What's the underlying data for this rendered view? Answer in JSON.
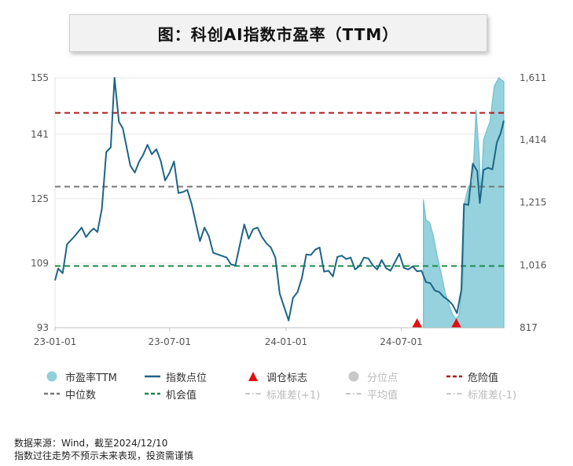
{
  "title": "图：科创AI指数市盈率（TTM）",
  "colors": {
    "pe_fill": "#8fd0db",
    "pe_stroke": "#6cc0ce",
    "index_line": "#1d6585",
    "danger": "#b01a1a",
    "median": "#777777",
    "opportunity": "#1a8a4a",
    "triangle": "#e01010",
    "muted": "#c8c8c8"
  },
  "chart_data": {
    "type": "line",
    "left_axis": {
      "min": 93,
      "max": 155,
      "ticks": [
        93,
        109,
        125,
        141,
        155
      ]
    },
    "right_axis": {
      "min": 817,
      "max": 1611,
      "ticks": [
        "817",
        "1,016",
        "1,215",
        "1,414",
        "1,611"
      ]
    },
    "x_axis": {
      "min": "2023-01-01",
      "max": "2024-12-10",
      "ticks": [
        {
          "label": "23-01-01",
          "date": "2023-01-01"
        },
        {
          "label": "23-07-01",
          "date": "2023-07-01"
        },
        {
          "label": "24-01-01",
          "date": "2024-01-01"
        },
        {
          "label": "24-07-01",
          "date": "2024-07-01"
        }
      ]
    },
    "reference_lines": {
      "danger": 146.3,
      "median": 128.0,
      "opportunity": 108.3
    },
    "pe_series": {
      "name": "市盈率TTM",
      "points": [
        [
          "2024-08-05",
          124.8
        ],
        [
          "2024-08-09",
          119.8
        ],
        [
          "2024-08-15",
          119.0
        ],
        [
          "2024-08-21",
          115.5
        ],
        [
          "2024-08-27",
          110.5
        ],
        [
          "2024-09-02",
          106.5
        ],
        [
          "2024-09-08",
          101.8
        ],
        [
          "2024-09-14",
          98.8
        ],
        [
          "2024-09-20",
          96.3
        ],
        [
          "2024-09-25",
          95.2
        ],
        [
          "2024-09-30",
          96.0
        ],
        [
          "2024-10-06",
          104.0
        ],
        [
          "2024-10-09",
          124.0
        ],
        [
          "2024-10-15",
          128.0
        ],
        [
          "2024-10-22",
          129.0
        ],
        [
          "2024-10-27",
          147.0
        ],
        [
          "2024-11-01",
          136.0
        ],
        [
          "2024-11-04",
          126.5
        ],
        [
          "2024-11-08",
          139.5
        ],
        [
          "2024-11-13",
          142.0
        ],
        [
          "2024-11-18",
          144.0
        ],
        [
          "2024-11-25",
          153.0
        ],
        [
          "2024-12-02",
          155.0
        ],
        [
          "2024-12-10",
          154.0
        ]
      ]
    },
    "index_series": {
      "name": "指数点位",
      "points": [
        [
          "2023-01-01",
          967
        ],
        [
          "2023-01-06",
          1005
        ],
        [
          "2023-01-13",
          990
        ],
        [
          "2023-01-20",
          1082
        ],
        [
          "2023-02-01",
          1108
        ],
        [
          "2023-02-12",
          1135
        ],
        [
          "2023-02-19",
          1105
        ],
        [
          "2023-02-26",
          1123
        ],
        [
          "2023-03-03",
          1132
        ],
        [
          "2023-03-09",
          1121
        ],
        [
          "2023-03-16",
          1195
        ],
        [
          "2023-03-23",
          1375
        ],
        [
          "2023-03-30",
          1390
        ],
        [
          "2023-04-05",
          1611
        ],
        [
          "2023-04-12",
          1471
        ],
        [
          "2023-04-18",
          1451
        ],
        [
          "2023-04-30",
          1332
        ],
        [
          "2023-05-07",
          1310
        ],
        [
          "2023-05-14",
          1345
        ],
        [
          "2023-05-20",
          1365
        ],
        [
          "2023-05-27",
          1398
        ],
        [
          "2023-06-03",
          1368
        ],
        [
          "2023-06-10",
          1384
        ],
        [
          "2023-06-17",
          1347
        ],
        [
          "2023-06-24",
          1285
        ],
        [
          "2023-07-01",
          1310
        ],
        [
          "2023-07-08",
          1345
        ],
        [
          "2023-07-15",
          1245
        ],
        [
          "2023-07-22",
          1248
        ],
        [
          "2023-07-29",
          1255
        ],
        [
          "2023-08-05",
          1208
        ],
        [
          "2023-08-12",
          1145
        ],
        [
          "2023-08-18",
          1092
        ],
        [
          "2023-08-25",
          1135
        ],
        [
          "2023-09-01",
          1108
        ],
        [
          "2023-09-08",
          1055
        ],
        [
          "2023-09-15",
          1050
        ],
        [
          "2023-09-22",
          1045
        ],
        [
          "2023-09-29",
          1040
        ],
        [
          "2023-10-06",
          1018
        ],
        [
          "2023-10-13",
          1015
        ],
        [
          "2023-10-27",
          1145
        ],
        [
          "2023-11-03",
          1100
        ],
        [
          "2023-11-10",
          1130
        ],
        [
          "2023-11-17",
          1135
        ],
        [
          "2023-11-24",
          1105
        ],
        [
          "2023-12-01",
          1085
        ],
        [
          "2023-12-08",
          1072
        ],
        [
          "2023-12-15",
          1040
        ],
        [
          "2023-12-22",
          925
        ],
        [
          "2024-01-05",
          840
        ],
        [
          "2024-01-12",
          912
        ],
        [
          "2024-01-19",
          930
        ],
        [
          "2024-01-26",
          975
        ],
        [
          "2024-02-02",
          1050
        ],
        [
          "2024-02-09",
          1048
        ],
        [
          "2024-02-16",
          1065
        ],
        [
          "2024-02-23",
          1072
        ],
        [
          "2024-03-01",
          995
        ],
        [
          "2024-03-08",
          998
        ],
        [
          "2024-03-15",
          980
        ],
        [
          "2024-03-22",
          1042
        ],
        [
          "2024-03-29",
          1046
        ],
        [
          "2024-04-05",
          1035
        ],
        [
          "2024-04-12",
          1040
        ],
        [
          "2024-04-19",
          1002
        ],
        [
          "2024-04-26",
          1013
        ],
        [
          "2024-05-03",
          1040
        ],
        [
          "2024-05-10",
          1037
        ],
        [
          "2024-05-17",
          1015
        ],
        [
          "2024-05-24",
          1002
        ],
        [
          "2024-05-31",
          1032
        ],
        [
          "2024-06-07",
          1006
        ],
        [
          "2024-06-14",
          998
        ],
        [
          "2024-06-28",
          1052
        ],
        [
          "2024-07-05",
          1007
        ],
        [
          "2024-07-12",
          1002
        ],
        [
          "2024-07-19",
          1012
        ],
        [
          "2024-07-26",
          996
        ],
        [
          "2024-08-02",
          998
        ],
        [
          "2024-08-09",
          962
        ],
        [
          "2024-08-16",
          958
        ],
        [
          "2024-08-23",
          935
        ],
        [
          "2024-08-30",
          930
        ],
        [
          "2024-09-06",
          915
        ],
        [
          "2024-09-13",
          905
        ],
        [
          "2024-09-20",
          890
        ],
        [
          "2024-09-27",
          863
        ],
        [
          "2024-10-04",
          938
        ],
        [
          "2024-10-08",
          1210
        ],
        [
          "2024-10-15",
          1207
        ],
        [
          "2024-10-22",
          1338
        ],
        [
          "2024-10-29",
          1315
        ],
        [
          "2024-11-02",
          1213
        ],
        [
          "2024-11-08",
          1318
        ],
        [
          "2024-11-15",
          1325
        ],
        [
          "2024-11-22",
          1320
        ],
        [
          "2024-11-29",
          1405
        ],
        [
          "2024-12-05",
          1435
        ],
        [
          "2024-12-10",
          1475
        ]
      ]
    },
    "adjustment_markers": [
      "2024-07-26",
      "2024-09-26"
    ],
    "legend": [
      [
        {
          "key": "pe",
          "label": "市盈率TTM",
          "symbol": "circle-teal",
          "muted": false
        },
        {
          "key": "index",
          "label": "指数点位",
          "symbol": "line-blue",
          "muted": false
        },
        {
          "key": "adjust",
          "label": "调仓标志",
          "symbol": "triangle-red",
          "muted": false
        },
        {
          "key": "quantile",
          "label": "分位点",
          "symbol": "circle-grey",
          "muted": true
        },
        {
          "key": "danger",
          "label": "危险值",
          "symbol": "dash-red",
          "muted": false
        }
      ],
      [
        {
          "key": "median",
          "label": "中位数",
          "symbol": "dash-grey",
          "muted": false
        },
        {
          "key": "opportunity",
          "label": "机会值",
          "symbol": "dash-green",
          "muted": false
        },
        {
          "key": "sd_plus",
          "label": "标准差(+1)",
          "symbol": "dashdot-light",
          "muted": true
        },
        {
          "key": "mean",
          "label": "平均值",
          "symbol": "dashdot-light",
          "muted": true
        },
        {
          "key": "sd_minus",
          "label": "标准差(-1)",
          "symbol": "dashdot-light",
          "muted": true
        }
      ]
    ]
  },
  "footer": {
    "source": "数据来源：Wind，截至2024/12/10",
    "disclaimer": "指数过往走势不预示未来表现，投资需谨慎"
  }
}
